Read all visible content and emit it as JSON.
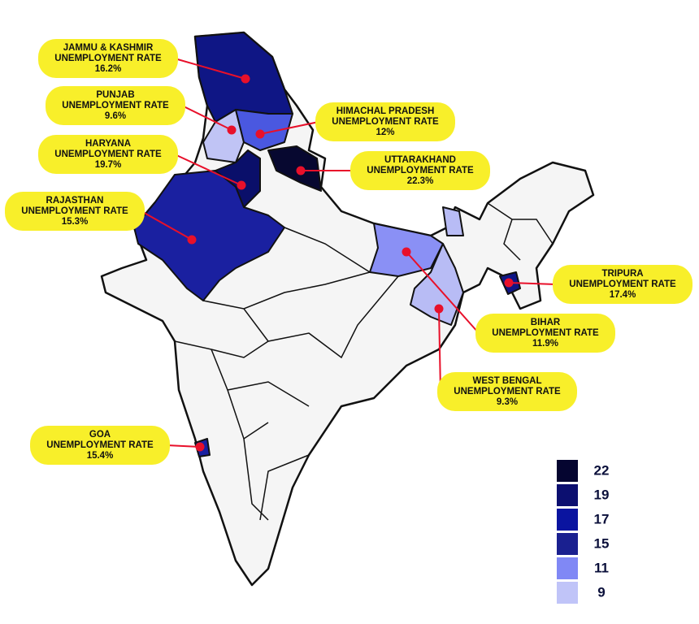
{
  "metric_label": "UNEMPLOYMENT RATE",
  "states": [
    {
      "name": "JAMMU & KASHMIR",
      "rate": "16.2%",
      "color": "#0f1685"
    },
    {
      "name": "PUNJAB",
      "rate": "9.6%",
      "color": "#c0c4f5"
    },
    {
      "name": "HIMACHAL PRADESH",
      "rate": "12%",
      "color": "#4a58e0"
    },
    {
      "name": "HARYANA",
      "rate": "19.7%",
      "color": "#0a0f6a"
    },
    {
      "name": "UTTARAKHAND",
      "rate": "22.3%",
      "color": "#070830"
    },
    {
      "name": "RAJASTHAN",
      "rate": "15.3%",
      "color": "#1a20a0"
    },
    {
      "name": "TRIPURA",
      "rate": "17.4%",
      "color": "#0f1685"
    },
    {
      "name": "BIHAR",
      "rate": "11.9%",
      "color": "#8a90f5"
    },
    {
      "name": "WEST BENGAL",
      "rate": "9.3%",
      "color": "#b8bcf5"
    },
    {
      "name": "GOA",
      "rate": "15.4%",
      "color": "#1a20a0"
    }
  ],
  "legend": {
    "values": [
      22,
      19,
      17,
      15,
      11,
      9
    ],
    "colors": [
      "#050530",
      "#0c0f70",
      "#0a14a0",
      "#1a2090",
      "#8088f5",
      "#c0c4f8"
    ]
  }
}
